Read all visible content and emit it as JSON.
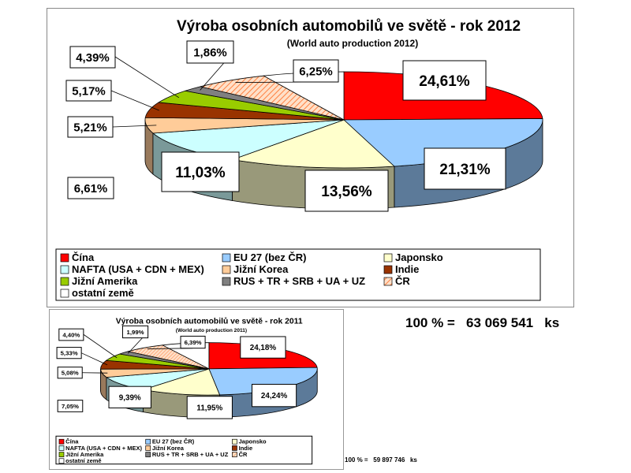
{
  "chart_data": [
    {
      "type": "pie",
      "title": "Výroba osobních automobilů ve světě - rok 2012",
      "subtitle": "(World auto production 2012)",
      "categories": [
        "Čína",
        "EU 27 (bez ČR)",
        "Japonsko",
        "NAFTA (USA + CDN + MEX)",
        "Jižní Korea",
        "Indie",
        "Jižní Amerika",
        "RUS + TR + SRB + UA + UZ",
        "ČR",
        "ostatní země"
      ],
      "values": [
        24.61,
        21.31,
        13.56,
        11.03,
        5.21,
        5.17,
        4.39,
        1.86,
        6.25,
        6.61
      ],
      "data_labels": [
        "24,61%",
        "21,31%",
        "13,56%",
        "11,03%",
        "5,21%",
        "5,17%",
        "4,39%",
        "1,86%",
        "6,25%",
        "6,61%"
      ],
      "legend_position": "bottom",
      "total_label": "100 % =   63 069 541   ks"
    },
    {
      "type": "pie",
      "title": "Výroba osobních automobilů ve světě - rok 2011",
      "subtitle": "(World auto production 2011)",
      "categories": [
        "Čína",
        "EU 27 (bez ČR)",
        "Japonsko",
        "NAFTA (USA + CDN + MEX)",
        "Jižní Korea",
        "Indie",
        "Jižní Amerika",
        "RUS + TR + SRB + UA + UZ",
        "ČR",
        "ostatní země"
      ],
      "values": [
        24.18,
        24.24,
        11.95,
        9.39,
        5.08,
        5.33,
        4.4,
        1.99,
        6.39,
        7.05
      ],
      "data_labels": [
        "24,18%",
        "24,24%",
        "11,95%",
        "9,39%",
        "5,08%",
        "5,33%",
        "4,40%",
        "1,99%",
        "6,39%",
        "7,05%"
      ],
      "legend_position": "bottom",
      "total_label": "100 % =   59 897 746   ks"
    }
  ],
  "slice_colors": [
    "#ff0000",
    "#99ccff",
    "#ffffcc",
    "#ccffff",
    "#ffcc99",
    "#993300",
    "#99cc00",
    "#808080",
    "#ff9966",
    "#ffffff"
  ],
  "slice_patterns": [
    null,
    null,
    null,
    null,
    null,
    null,
    null,
    null,
    "hatch",
    null
  ]
}
